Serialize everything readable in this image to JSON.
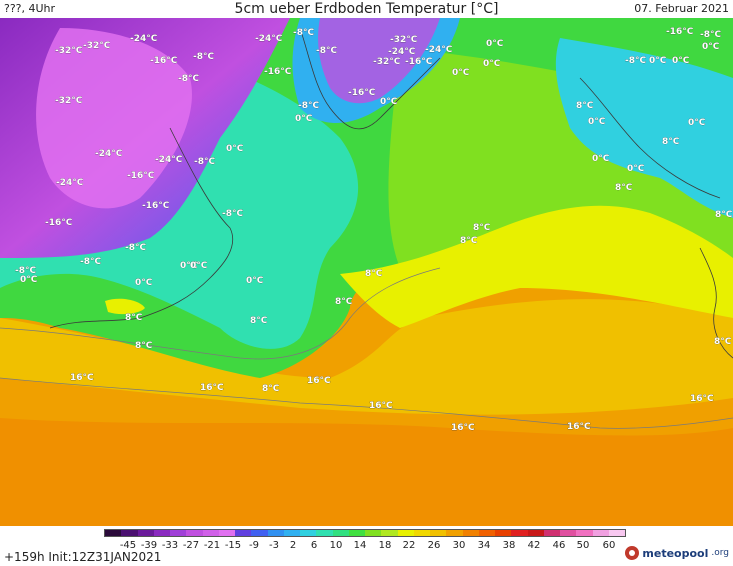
{
  "header": {
    "left": "???, 4Uhr",
    "title": "5cm ueber Erdboden Temperatur [°C]",
    "date": "07. Februar 2021"
  },
  "footer": {
    "run_info": "+159h Init:12Z31JAN2021",
    "brand_name": "meteopool",
    "brand_suffix": ".org"
  },
  "legend": {
    "ticks": [
      "-45",
      "-39",
      "-33",
      "-27",
      "-21",
      "-15",
      "-9",
      "-3",
      "2",
      "6",
      "10",
      "14",
      "18",
      "22",
      "26",
      "30",
      "34",
      "38",
      "42",
      "46",
      "50",
      "60"
    ],
    "colors": [
      "#2a0a3a",
      "#4a1070",
      "#6a1a9a",
      "#8a2ac0",
      "#a040d8",
      "#c050e0",
      "#d060e8",
      "#e070f0",
      "#6040e0",
      "#4060f0",
      "#3090f0",
      "#30b0f0",
      "#30d0e0",
      "#30e0b0",
      "#30e080",
      "#40e040",
      "#80e020",
      "#b0e820",
      "#e8f000",
      "#f0d800",
      "#f0c000",
      "#f0a000",
      "#f08000",
      "#f06000",
      "#e84000",
      "#e02020",
      "#c81818",
      "#d03070",
      "#e050a0",
      "#f070c0",
      "#f0a0e0",
      "#f8c8f0"
    ]
  },
  "map": {
    "labels": [
      {
        "text": "-32°C"
      },
      {
        "text": "-32°C"
      },
      {
        "text": "-24°C"
      },
      {
        "text": "-16°C"
      },
      {
        "text": "-8°C"
      },
      {
        "text": "-8°C"
      },
      {
        "text": "-24°C"
      },
      {
        "text": "-8°C"
      },
      {
        "text": "-8°C"
      },
      {
        "text": "-16°C"
      },
      {
        "text": "-32°C"
      },
      {
        "text": "-24°C"
      },
      {
        "text": "-24°C"
      },
      {
        "text": "-8°C"
      },
      {
        "text": "0°C"
      },
      {
        "text": "-16°C"
      },
      {
        "text": "-8°C"
      },
      {
        "text": "-16°C"
      },
      {
        "text": "0°C"
      },
      {
        "text": "-8°C"
      },
      {
        "text": "0°C"
      },
      {
        "text": "-32°C"
      },
      {
        "text": "-24°C"
      },
      {
        "text": "-16°C"
      },
      {
        "text": "0°C"
      },
      {
        "text": "-32°C"
      },
      {
        "text": "-24°C"
      },
      {
        "text": "-16°C"
      },
      {
        "text": "-8°C"
      },
      {
        "text": "-24°C"
      },
      {
        "text": "-16°C"
      },
      {
        "text": "-8°C"
      },
      {
        "text": "-8°C"
      },
      {
        "text": "0°C"
      },
      {
        "text": "0°C"
      },
      {
        "text": "0°C"
      },
      {
        "text": "0°C"
      },
      {
        "text": "0°C"
      },
      {
        "text": "8°C"
      },
      {
        "text": "8°C"
      },
      {
        "text": "8°C"
      },
      {
        "text": "8°C"
      },
      {
        "text": "8°C"
      },
      {
        "text": "8°C"
      },
      {
        "text": "8°C"
      },
      {
        "text": "16°C"
      },
      {
        "text": "16°C"
      },
      {
        "text": "16°C"
      },
      {
        "text": "16°C"
      },
      {
        "text": "16°C"
      },
      {
        "text": "16°C"
      },
      {
        "text": "16°C"
      },
      {
        "text": "8°C"
      },
      {
        "text": "8°C"
      },
      {
        "text": "-16°C"
      },
      {
        "text": "-8°C"
      },
      {
        "text": "0°C"
      },
      {
        "text": "-8°C"
      },
      {
        "text": "0°C"
      },
      {
        "text": "0°C"
      },
      {
        "text": "8°C"
      },
      {
        "text": "0°C"
      },
      {
        "text": "0°C"
      },
      {
        "text": "0°C"
      },
      {
        "text": "0°C"
      },
      {
        "text": "8°C"
      },
      {
        "text": "8°C"
      },
      {
        "text": "0°C"
      },
      {
        "text": "0°C"
      },
      {
        "text": "8°C"
      }
    ]
  }
}
